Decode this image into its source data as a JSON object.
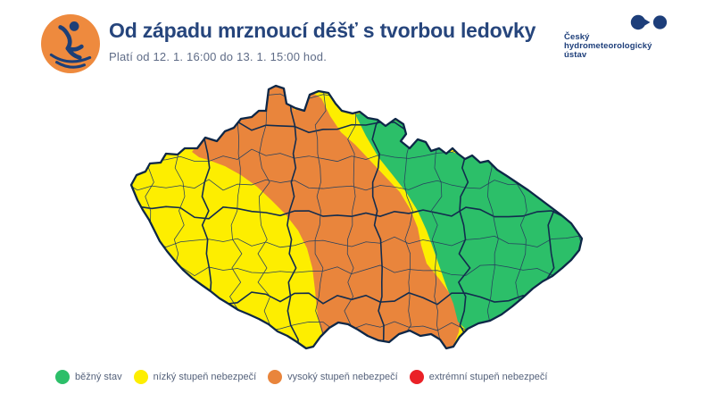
{
  "header": {
    "title": "Od západu mrznoucí déšť s tvorbou ledovky",
    "subtitle": "Platí od 12. 1. 16:00 do 13. 1. 15:00 hod.",
    "icon": "slipping-person-icon"
  },
  "logo": {
    "line1": "Český",
    "line2": "hydrometeorologický",
    "line3": "ústav"
  },
  "colors": {
    "title_navy": "#26457c",
    "subtitle_gray_blue": "#5f6c87",
    "logo_navy": "#1d3e7a",
    "icon_orange": "#ee8a3e",
    "icon_figure_navy": "#1d3f77",
    "map_district_border": "#26405f",
    "map_region_border": "#122c4e",
    "map_outline": "#0d2747"
  },
  "legend": {
    "items": [
      {
        "level": "green",
        "color": "#2cbf69",
        "label": "běžný stav"
      },
      {
        "level": "yellow",
        "color": "#fdee00",
        "label": "nízký stupeň nebezpečí"
      },
      {
        "level": "orange",
        "color": "#e9853c",
        "label": "vysoký stupeň nebezpečí"
      },
      {
        "level": "red",
        "color": "#ea2127",
        "label": "extrémní stupeň nebezpečí"
      }
    ]
  },
  "map": {
    "zones": [
      {
        "id": "base-west-south-bohemia",
        "level": "yellow"
      },
      {
        "id": "central-diagonal-band",
        "level": "orange"
      },
      {
        "id": "east-moravia-silesia",
        "level": "green"
      }
    ]
  }
}
